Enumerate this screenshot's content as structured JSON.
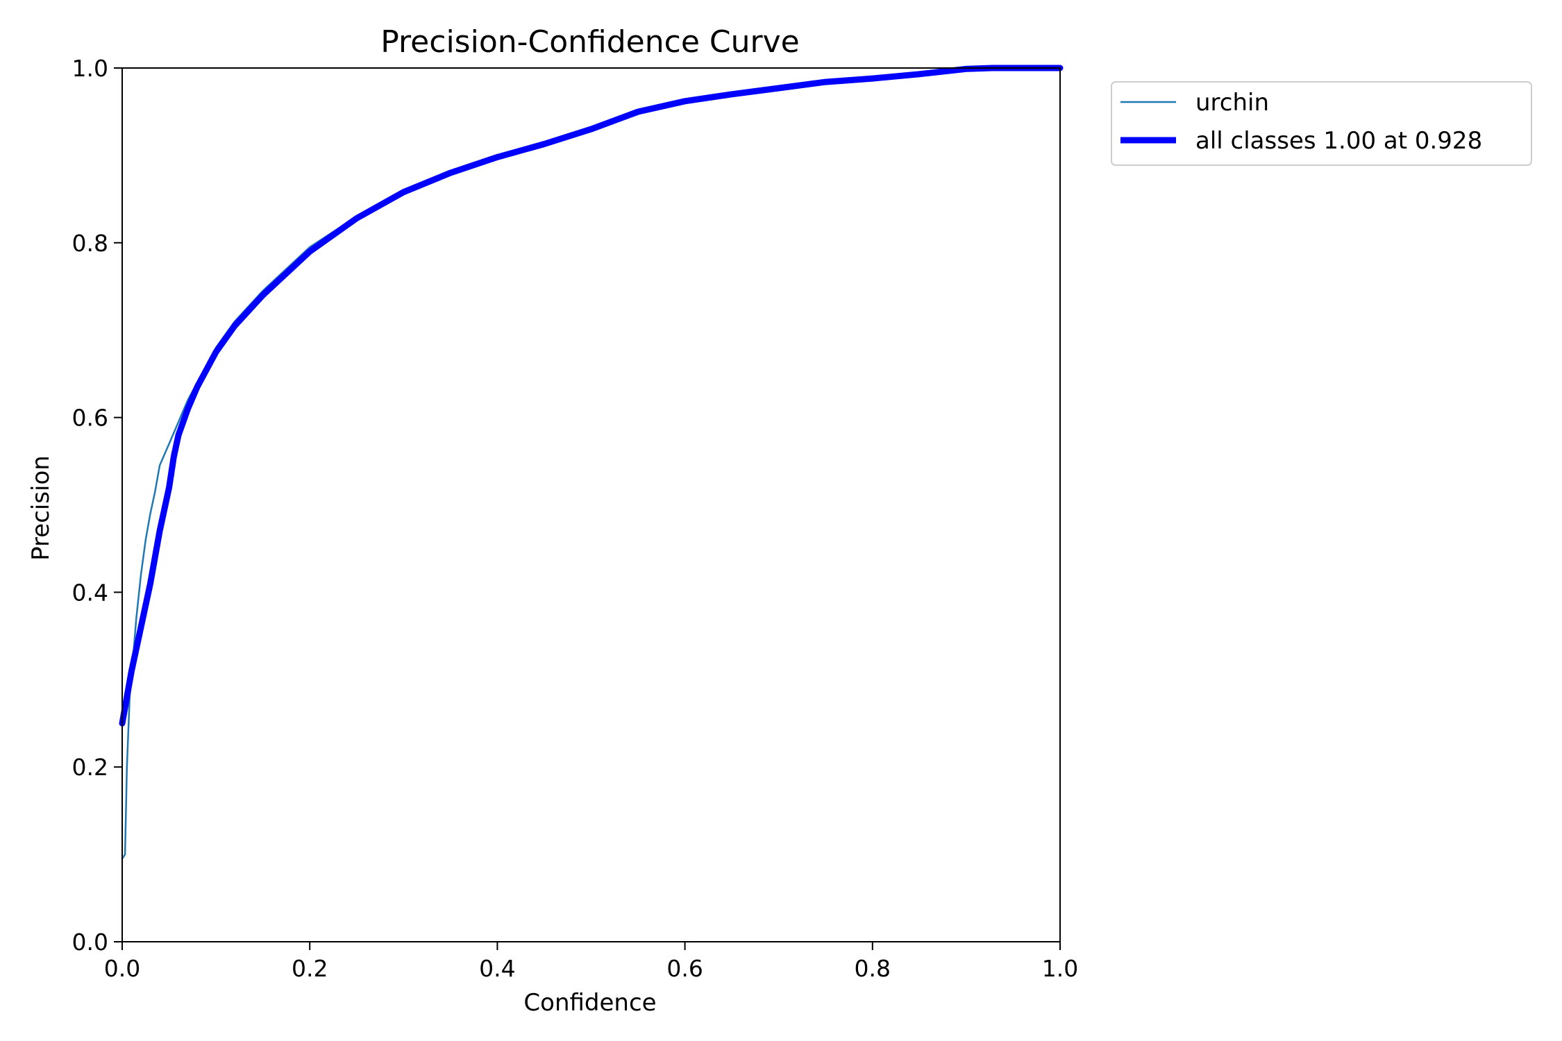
{
  "chart_data": {
    "type": "line",
    "title": "Precision-Confidence Curve",
    "xlabel": "Confidence",
    "ylabel": "Precision",
    "xlim": [
      0.0,
      1.0
    ],
    "ylim": [
      0.0,
      1.0
    ],
    "x_ticks": [
      "0.0",
      "0.2",
      "0.4",
      "0.6",
      "0.8",
      "1.0"
    ],
    "y_ticks": [
      "0.0",
      "0.2",
      "0.4",
      "0.6",
      "0.8",
      "1.0"
    ],
    "grid": false,
    "legend_position": "outside upper-right",
    "series": [
      {
        "name": "urchin",
        "color": "#1f77b4",
        "linewidth": "thin",
        "points": [
          [
            0.0,
            0.095
          ],
          [
            0.003,
            0.1
          ],
          [
            0.005,
            0.2
          ],
          [
            0.008,
            0.28
          ],
          [
            0.012,
            0.33
          ],
          [
            0.015,
            0.37
          ],
          [
            0.02,
            0.42
          ],
          [
            0.025,
            0.46
          ],
          [
            0.03,
            0.49
          ],
          [
            0.035,
            0.515
          ],
          [
            0.04,
            0.545
          ],
          [
            0.05,
            0.57
          ],
          [
            0.06,
            0.595
          ],
          [
            0.07,
            0.62
          ],
          [
            0.08,
            0.64
          ],
          [
            0.09,
            0.66
          ],
          [
            0.1,
            0.68
          ],
          [
            0.12,
            0.71
          ],
          [
            0.15,
            0.745
          ],
          [
            0.2,
            0.795
          ],
          [
            0.25,
            0.83
          ],
          [
            0.3,
            0.86
          ],
          [
            0.35,
            0.88
          ],
          [
            0.4,
            0.9
          ],
          [
            0.45,
            0.915
          ],
          [
            0.5,
            0.93
          ],
          [
            0.55,
            0.95
          ],
          [
            0.6,
            0.963
          ],
          [
            0.65,
            0.97
          ],
          [
            0.7,
            0.978
          ],
          [
            0.75,
            0.984
          ],
          [
            0.8,
            0.988
          ],
          [
            0.85,
            0.993
          ],
          [
            0.9,
            0.999
          ],
          [
            0.928,
            1.0
          ],
          [
            1.0,
            1.0
          ]
        ]
      },
      {
        "name": "all classes 1.00 at 0.928",
        "color": "#0000ff",
        "linewidth": "thick",
        "points": [
          [
            0.0,
            0.25
          ],
          [
            0.01,
            0.31
          ],
          [
            0.02,
            0.36
          ],
          [
            0.03,
            0.41
          ],
          [
            0.04,
            0.47
          ],
          [
            0.05,
            0.52
          ],
          [
            0.055,
            0.555
          ],
          [
            0.06,
            0.58
          ],
          [
            0.07,
            0.61
          ],
          [
            0.08,
            0.635
          ],
          [
            0.09,
            0.655
          ],
          [
            0.1,
            0.675
          ],
          [
            0.12,
            0.705
          ],
          [
            0.15,
            0.74
          ],
          [
            0.2,
            0.79
          ],
          [
            0.25,
            0.828
          ],
          [
            0.3,
            0.858
          ],
          [
            0.35,
            0.88
          ],
          [
            0.4,
            0.898
          ],
          [
            0.45,
            0.913
          ],
          [
            0.5,
            0.93
          ],
          [
            0.55,
            0.95
          ],
          [
            0.6,
            0.962
          ],
          [
            0.65,
            0.97
          ],
          [
            0.7,
            0.977
          ],
          [
            0.75,
            0.984
          ],
          [
            0.8,
            0.988
          ],
          [
            0.85,
            0.993
          ],
          [
            0.9,
            0.999
          ],
          [
            0.928,
            1.0
          ],
          [
            1.0,
            1.0
          ]
        ]
      }
    ]
  }
}
